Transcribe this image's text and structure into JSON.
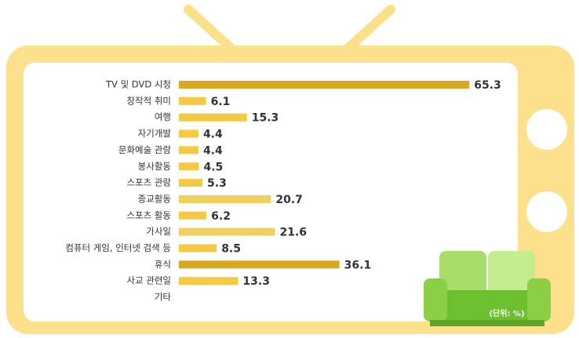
{
  "chart_data": {
    "type": "bar",
    "orientation": "horizontal",
    "categories": [
      "TV 및 DVD 시청",
      "창작적 취미",
      "여행",
      "자기개발",
      "문화예술 관람",
      "봉사활동",
      "스포츠 관람",
      "종교활동",
      "스포츠 활동",
      "가사일",
      "컴퓨터 게임, 인터넷 검색 등",
      "휴식",
      "사교 관련일",
      "기타"
    ],
    "values": [
      65.3,
      6.1,
      15.3,
      4.4,
      4.4,
      4.5,
      5.3,
      20.7,
      6.2,
      21.6,
      8.5,
      36.1,
      13.3,
      null
    ],
    "colors": [
      "#d8a920",
      "#f3c945",
      "#f3c945",
      "#f3c945",
      "#f3c945",
      "#f3c945",
      "#f3c945",
      "#f1cf5e",
      "#f3c945",
      "#f1cf5e",
      "#f3c945",
      "#d8a920",
      "#f3c945",
      "#f3c945"
    ],
    "note": "(단위: %)"
  }
}
